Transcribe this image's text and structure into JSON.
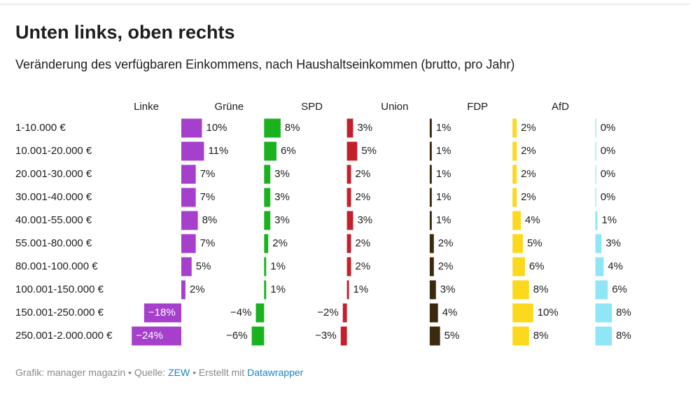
{
  "chart_data": {
    "type": "bar",
    "title": "Unten links, oben rechts",
    "subtitle": "Veränderung des verfügbaren Einkommens, nach Haushaltseinkommen (brutto, pro Jahr)",
    "categories": [
      "1-10.000 €",
      "10.001-20.000 €",
      "20.001-30.000 €",
      "30.001-40.000 €",
      "40.001-55.000 €",
      "55.001-80.000 €",
      "80.001-100.000 €",
      "100.001-150.000 €",
      "150.001-250.000 €",
      "250.001-2.000.000 €"
    ],
    "series": [
      {
        "name": "Linke",
        "color": "#a53fcc",
        "values": [
          10,
          11,
          7,
          7,
          8,
          7,
          5,
          2,
          -18,
          -24
        ],
        "value_labels": [
          "10%",
          "11%",
          "7%",
          "7%",
          "8%",
          "7%",
          "5%",
          "2%",
          "−18%",
          "−24%"
        ]
      },
      {
        "name": "Grüne",
        "color": "#1bb21f",
        "values": [
          8,
          6,
          3,
          3,
          3,
          2,
          1,
          1,
          -4,
          -6
        ],
        "value_labels": [
          "8%",
          "6%",
          "3%",
          "3%",
          "3%",
          "2%",
          "1%",
          "1%",
          "−4%",
          "−6%"
        ]
      },
      {
        "name": "SPD",
        "color": "#c4202a",
        "values": [
          3,
          5,
          2,
          2,
          3,
          2,
          2,
          1,
          -2,
          -3
        ],
        "value_labels": [
          "3%",
          "5%",
          "2%",
          "2%",
          "3%",
          "2%",
          "2%",
          "1%",
          "−2%",
          "−3%"
        ]
      },
      {
        "name": "Union",
        "color": "#3d2a0e",
        "values": [
          1,
          1,
          1,
          1,
          1,
          2,
          2,
          3,
          4,
          5
        ],
        "value_labels": [
          "1%",
          "1%",
          "1%",
          "1%",
          "1%",
          "2%",
          "2%",
          "3%",
          "4%",
          "5%"
        ]
      },
      {
        "name": "FDP",
        "color": "#fcd91c",
        "values": [
          2,
          2,
          2,
          2,
          4,
          5,
          6,
          8,
          10,
          8
        ],
        "value_labels": [
          "2%",
          "2%",
          "2%",
          "2%",
          "4%",
          "5%",
          "6%",
          "8%",
          "10%",
          "8%"
        ]
      },
      {
        "name": "AfD",
        "color": "#8ee6f6",
        "values": [
          0,
          0,
          0,
          0,
          1,
          3,
          4,
          6,
          8,
          8
        ],
        "value_labels": [
          "0%",
          "0%",
          "0%",
          "0%",
          "1%",
          "3%",
          "4%",
          "6%",
          "8%",
          "8%"
        ]
      }
    ],
    "footer": {
      "credit": "Grafik: manager magazin",
      "separator": "•",
      "source_label": "Quelle:",
      "source": "ZEW",
      "made_with": "Erstellt mit",
      "tool": "Datawrapper"
    }
  }
}
